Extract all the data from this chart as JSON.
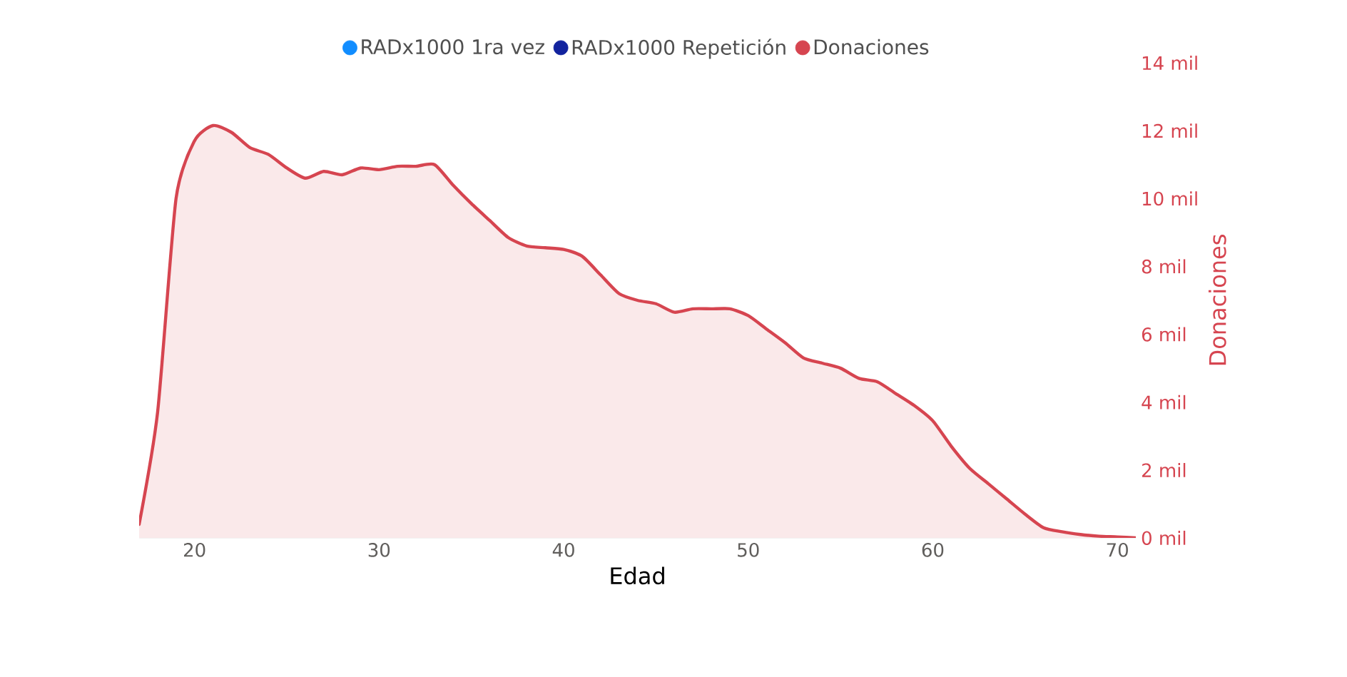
{
  "chart_data": {
    "type": "area",
    "xlabel": "Edad",
    "ylabel": "Donaciones",
    "legend": "top",
    "grid": false,
    "x": [
      17,
      18,
      19,
      20,
      21,
      22,
      23,
      24,
      25,
      26,
      27,
      28,
      29,
      30,
      31,
      32,
      33,
      34,
      35,
      36,
      37,
      38,
      39,
      40,
      41,
      42,
      43,
      44,
      45,
      46,
      47,
      48,
      49,
      50,
      51,
      52,
      53,
      54,
      55,
      56,
      57,
      58,
      59,
      60,
      61,
      62,
      63,
      64,
      65,
      66,
      67,
      68,
      69,
      70,
      71
    ],
    "series": [
      {
        "name": "RADx1000 1ra vez",
        "color": "#118dff",
        "values": [
          null,
          null,
          null,
          null,
          null,
          null,
          null,
          null,
          null,
          null,
          null,
          null,
          null,
          null,
          null,
          null,
          null,
          null,
          null,
          null,
          null,
          null,
          null,
          null,
          null,
          null,
          null,
          null,
          null,
          null,
          null,
          null,
          null,
          null,
          null,
          null,
          null,
          null,
          null,
          null,
          null,
          null,
          null,
          null,
          null,
          null,
          null,
          null,
          null,
          null,
          null,
          null,
          null,
          null,
          null
        ]
      },
      {
        "name": "RADx1000 Repetición",
        "color": "#12239e",
        "values": [
          null,
          null,
          null,
          null,
          null,
          null,
          null,
          null,
          null,
          null,
          null,
          null,
          null,
          null,
          null,
          null,
          null,
          null,
          null,
          null,
          null,
          null,
          null,
          null,
          null,
          null,
          null,
          null,
          null,
          null,
          null,
          null,
          null,
          null,
          null,
          null,
          null,
          null,
          null,
          null,
          null,
          null,
          null,
          null,
          null,
          null,
          null,
          null,
          null,
          null,
          null,
          null,
          null,
          null,
          null
        ]
      },
      {
        "name": "Donaciones",
        "color": "#d64550",
        "values": [
          0.4,
          3.7,
          10.0,
          11.7,
          12.15,
          11.95,
          11.5,
          11.3,
          10.9,
          10.6,
          10.8,
          10.7,
          10.9,
          10.85,
          10.95,
          10.95,
          11.0,
          10.4,
          9.85,
          9.35,
          8.85,
          8.6,
          8.55,
          8.5,
          8.3,
          7.75,
          7.2,
          7.0,
          6.9,
          6.65,
          6.75,
          6.75,
          6.75,
          6.55,
          6.15,
          5.75,
          5.3,
          5.15,
          5.0,
          4.7,
          4.6,
          4.25,
          3.9,
          3.45,
          2.7,
          2.05,
          1.6,
          1.15,
          0.7,
          0.3,
          0.18,
          0.1,
          0.05,
          0.03,
          0.0
        ]
      }
    ],
    "xlim": [
      17,
      71
    ],
    "xticks": [
      20,
      30,
      40,
      50,
      60,
      70
    ],
    "ylim": [
      0,
      14
    ],
    "yticks": [
      {
        "value": 0,
        "label": "0 mil"
      },
      {
        "value": 2,
        "label": "2 mil"
      },
      {
        "value": 4,
        "label": "4 mil"
      },
      {
        "value": 6,
        "label": "6 mil"
      },
      {
        "value": 8,
        "label": "8 mil"
      },
      {
        "value": 10,
        "label": "10 mil"
      },
      {
        "value": 12,
        "label": "12 mil"
      },
      {
        "value": 14,
        "label": "14 mil"
      }
    ]
  }
}
